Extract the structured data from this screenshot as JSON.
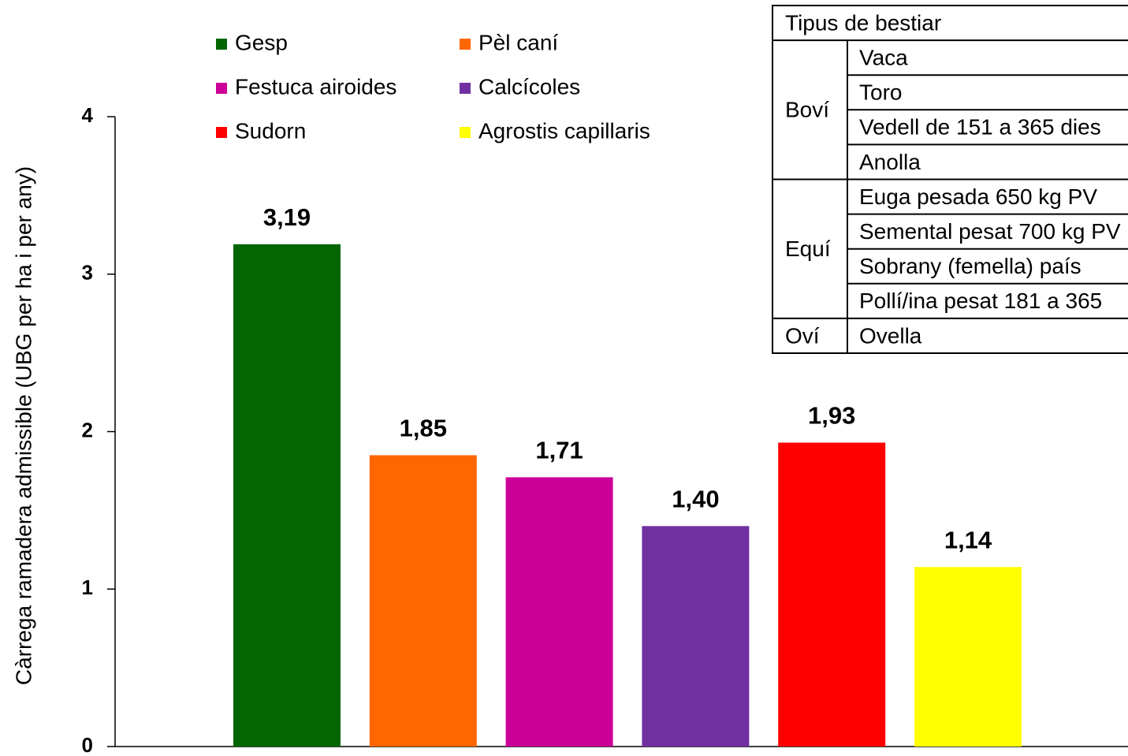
{
  "chart_data": {
    "type": "bar",
    "ylabel": "Càrrega ramadera admissible (UBG per ha i per any)",
    "categories": [
      "Gesp",
      "Pèl caní",
      "Festuca airoides",
      "Calcícoles",
      "Sudorn",
      "Agrostis capillaris"
    ],
    "values": [
      3.19,
      1.85,
      1.71,
      1.4,
      1.93,
      1.14
    ],
    "value_labels": [
      "3,19",
      "1,85",
      "1,71",
      "1,40",
      "1,93",
      "1,14"
    ],
    "colors": [
      "#036603",
      "#ff6600",
      "#cc0099",
      "#7030a0",
      "#ff0000",
      "#ffff00"
    ],
    "ylim": [
      0,
      4
    ],
    "yticks": [
      0,
      1,
      2,
      3,
      4
    ],
    "grid": false
  },
  "table": {
    "header": "Tipus de bestiar",
    "groups": [
      {
        "name": "Boví",
        "rows": [
          "Vaca",
          "Toro",
          "Vedell de 151 a 365 dies",
          "Anolla"
        ]
      },
      {
        "name": "Equí",
        "rows": [
          "Euga pesada 650 kg PV",
          "Semental pesat 700 kg PV",
          "Sobrany (femella) país",
          "Pollí/ina pesat 181 a 365"
        ]
      },
      {
        "name": "Oví",
        "rows": [
          "Ovella"
        ]
      }
    ]
  }
}
